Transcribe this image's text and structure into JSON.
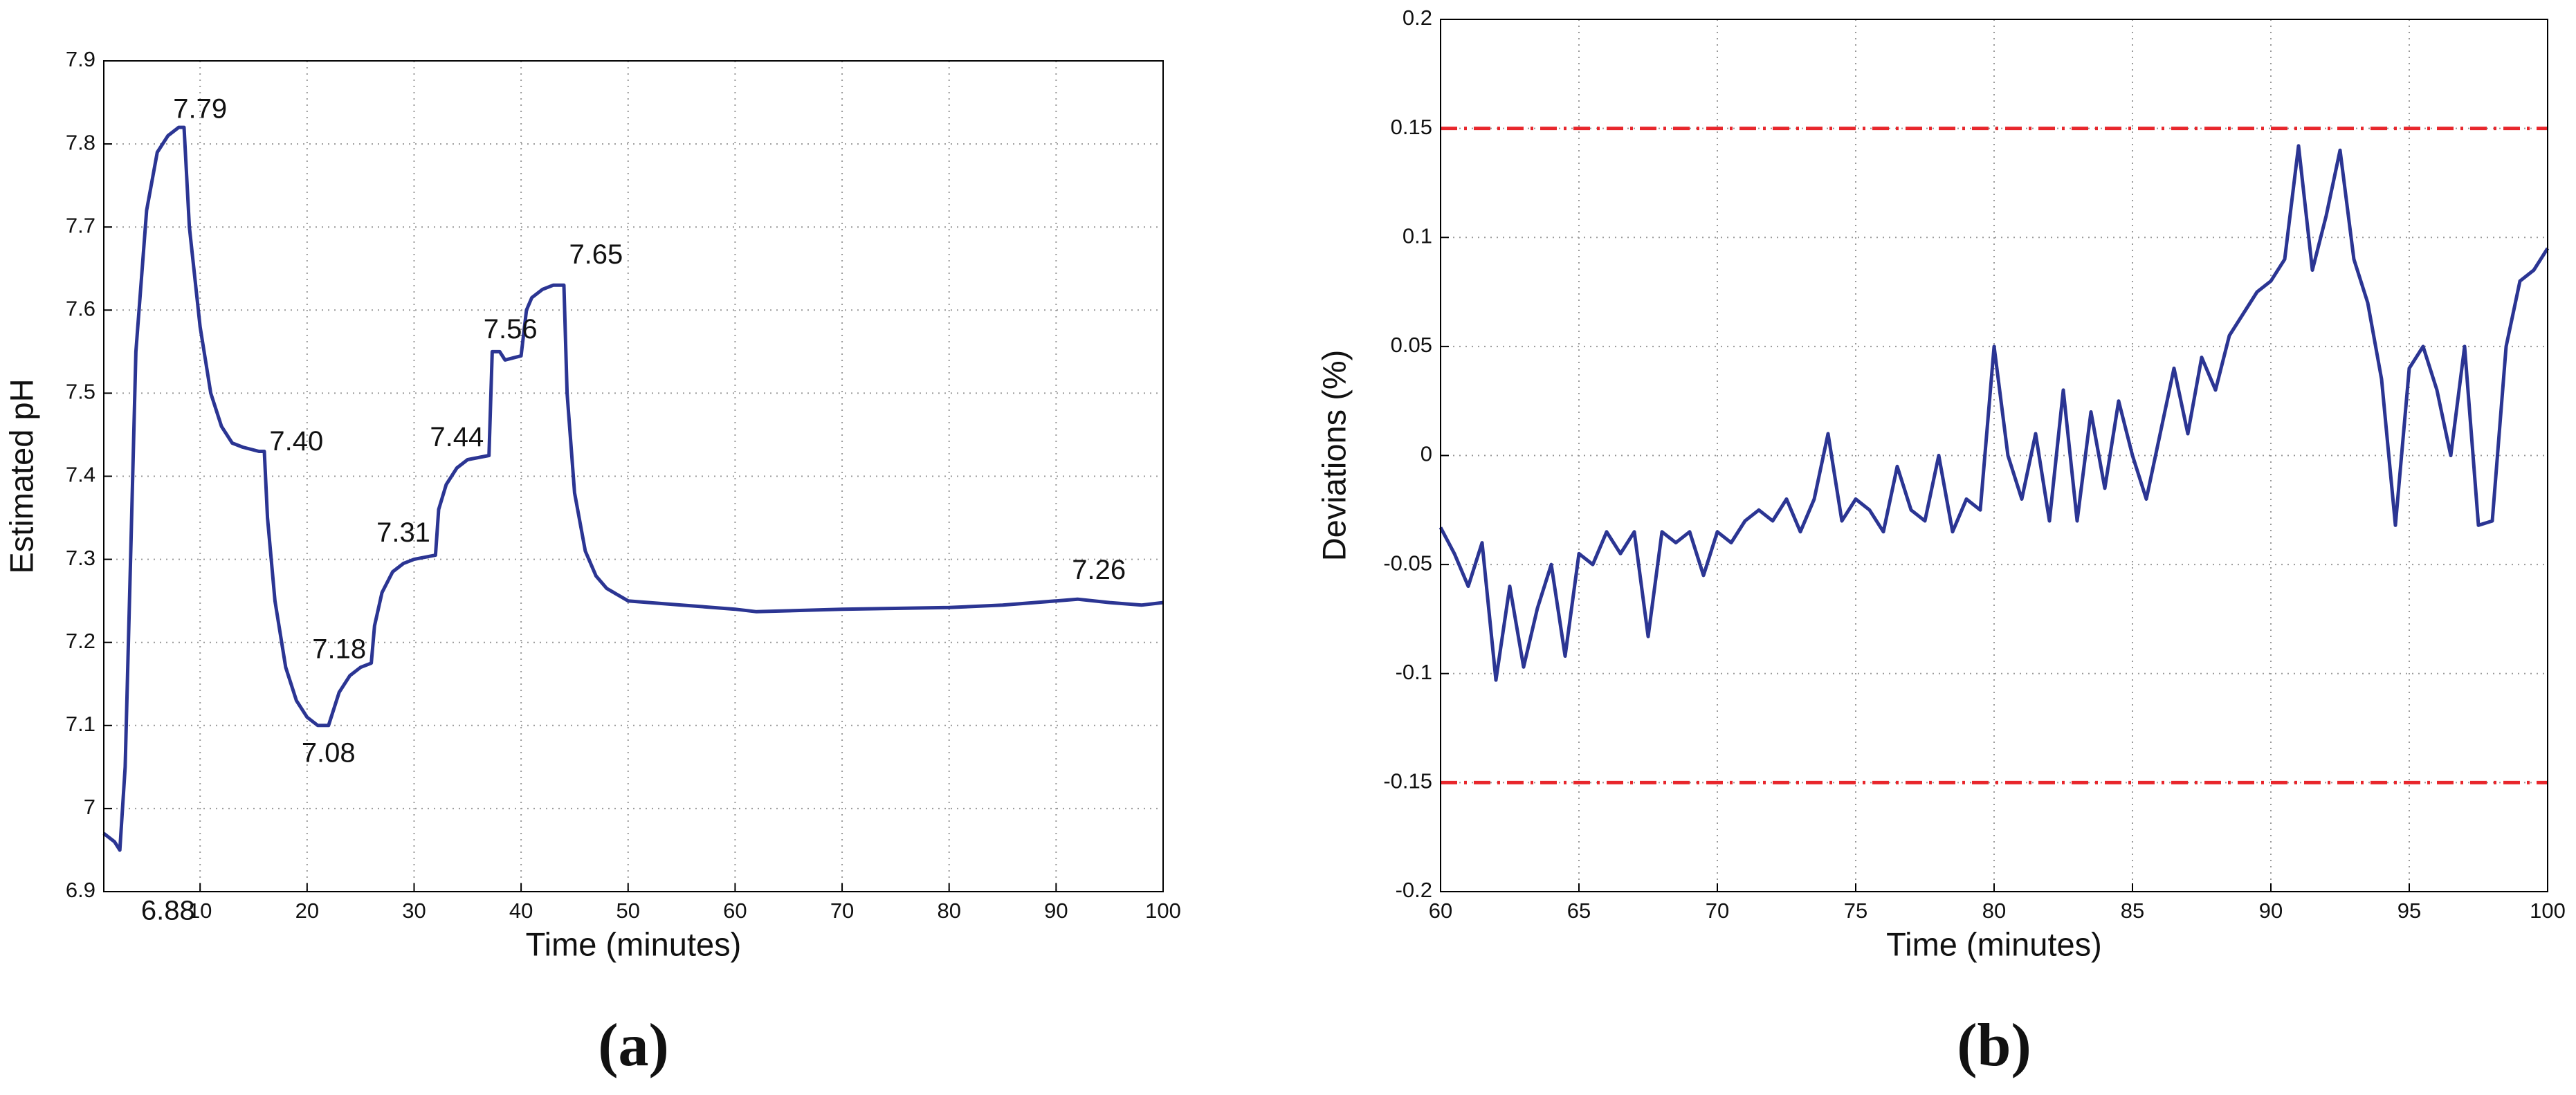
{
  "chart_data": [
    {
      "type": "line",
      "panel_label": "(a)",
      "x_label": "Time (minutes)",
      "y_label": "Estimated pH",
      "color": "#2b3593",
      "grid": true,
      "xlim": [
        1,
        100
      ],
      "ylim": [
        6.9,
        7.9
      ],
      "xticks": [
        10,
        20,
        30,
        40,
        50,
        60,
        70,
        80,
        90,
        100
      ],
      "yticks": [
        6.9,
        7,
        7.1,
        7.2,
        7.3,
        7.4,
        7.5,
        7.6,
        7.7,
        7.8,
        7.9
      ],
      "annotations": [
        "7.79",
        "6.88",
        "7.40",
        "7.18",
        "7.08",
        "7.31",
        "7.44",
        "7.56",
        "7.65",
        "7.26"
      ],
      "x": [
        1,
        2,
        2.5,
        3,
        3.5,
        4,
        5,
        6,
        7,
        8,
        8.5,
        9,
        10,
        11,
        12,
        13,
        14,
        15.5,
        16,
        16.3,
        17,
        18,
        19,
        20,
        21,
        22,
        22.5,
        23,
        24,
        25,
        26,
        26.3,
        27,
        28,
        29,
        30,
        32,
        32.3,
        33,
        34,
        35,
        37,
        37.3,
        38,
        38.5,
        40,
        40.5,
        41,
        42,
        43,
        44,
        44.3,
        45,
        46,
        47,
        48,
        50,
        55,
        60,
        62,
        70,
        80,
        85,
        90,
        92,
        95,
        98,
        100
      ],
      "values": [
        6.97,
        6.96,
        6.95,
        7.05,
        7.3,
        7.55,
        7.72,
        7.79,
        7.81,
        7.82,
        7.82,
        7.7,
        7.58,
        7.5,
        7.46,
        7.44,
        7.435,
        7.43,
        7.43,
        7.35,
        7.25,
        7.17,
        7.13,
        7.11,
        7.1,
        7.1,
        7.12,
        7.14,
        7.16,
        7.17,
        7.175,
        7.22,
        7.26,
        7.285,
        7.295,
        7.3,
        7.305,
        7.36,
        7.39,
        7.41,
        7.42,
        7.425,
        7.55,
        7.55,
        7.54,
        7.545,
        7.6,
        7.615,
        7.625,
        7.63,
        7.63,
        7.5,
        7.38,
        7.31,
        7.28,
        7.265,
        7.25,
        7.245,
        7.24,
        7.237,
        7.24,
        7.242,
        7.245,
        7.25,
        7.252,
        7.248,
        7.245,
        7.248
      ]
    },
    {
      "type": "line",
      "panel_label": "(b)",
      "x_label": "Time (minutes)",
      "y_label": "Deviations (%)",
      "color": "#2b3593",
      "grid": true,
      "xlim": [
        60,
        100
      ],
      "ylim": [
        -0.2,
        0.2
      ],
      "xticks": [
        60,
        65,
        70,
        75,
        80,
        85,
        90,
        95,
        100
      ],
      "yticks": [
        -0.2,
        -0.15,
        -0.1,
        -0.05,
        0,
        0.05,
        0.1,
        0.15,
        0.2
      ],
      "reference_lines": {
        "values": [
          0.15,
          -0.15
        ],
        "color": "#e8262b"
      },
      "x": [
        60,
        60.5,
        61,
        61.5,
        62,
        62.5,
        63,
        63.5,
        64,
        64.5,
        65,
        65.5,
        66,
        66.5,
        67,
        67.5,
        68,
        68.5,
        69,
        69.5,
        70,
        70.5,
        71,
        71.5,
        72,
        72.5,
        73,
        73.5,
        74,
        74.5,
        75,
        75.5,
        76,
        76.5,
        77,
        77.5,
        78,
        78.5,
        79,
        79.5,
        80,
        80.5,
        81,
        81.5,
        82,
        82.5,
        83,
        83.5,
        84,
        84.5,
        85,
        85.5,
        86,
        86.5,
        87,
        87.5,
        88,
        88.5,
        89,
        89.5,
        90,
        90.5,
        91,
        91.5,
        92,
        92.5,
        93,
        93.5,
        94,
        94.5,
        95,
        95.5,
        96,
        96.5,
        97,
        97.5,
        98,
        98.5,
        99,
        99.5,
        100
      ],
      "values": [
        -0.033,
        -0.045,
        -0.06,
        -0.04,
        -0.103,
        -0.06,
        -0.097,
        -0.07,
        -0.05,
        -0.092,
        -0.045,
        -0.05,
        -0.035,
        -0.045,
        -0.035,
        -0.083,
        -0.035,
        -0.04,
        -0.035,
        -0.055,
        -0.035,
        -0.04,
        -0.03,
        -0.025,
        -0.03,
        -0.02,
        -0.035,
        -0.02,
        0.01,
        -0.03,
        -0.02,
        -0.025,
        -0.035,
        -0.005,
        -0.025,
        -0.03,
        0.0,
        -0.035,
        -0.02,
        -0.025,
        0.05,
        0.0,
        -0.02,
        0.01,
        -0.03,
        0.03,
        -0.03,
        0.02,
        -0.015,
        0.025,
        0.0,
        -0.02,
        0.01,
        0.04,
        0.01,
        0.045,
        0.03,
        0.055,
        0.065,
        0.075,
        0.08,
        0.09,
        0.142,
        0.085,
        0.11,
        0.14,
        0.09,
        0.07,
        0.035,
        -0.032,
        0.04,
        0.05,
        0.03,
        0.0,
        0.05,
        -0.032,
        -0.03,
        0.05,
        0.08,
        0.085,
        0.095
      ]
    }
  ]
}
